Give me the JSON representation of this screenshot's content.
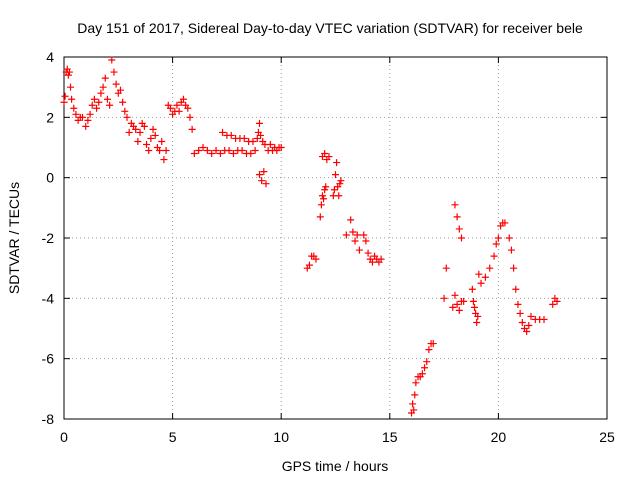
{
  "chart_data": {
    "type": "scatter",
    "title": "Day 151 of 2017, Sidereal Day-to-day VTEC variation (SDTVAR) for receiver bele",
    "xlabel": "GPS time / hours",
    "ylabel": "SDTVAR / TECUs",
    "xlim": [
      0,
      25
    ],
    "ylim": [
      -8,
      4
    ],
    "x_ticks": [
      0,
      5,
      10,
      15,
      20,
      25
    ],
    "y_ticks": [
      -8,
      -6,
      -4,
      -2,
      0,
      2,
      4
    ],
    "x_tick_labels": [
      "0",
      "5",
      "10",
      "15",
      "20",
      "25"
    ],
    "y_tick_labels": [
      "-8",
      "-6",
      "-4",
      "-2",
      "0",
      "2",
      "4"
    ],
    "grid": true,
    "marker": "+",
    "color": "#ff0000",
    "series": [
      {
        "name": "SDTVAR",
        "x": [
          0.0,
          0.05,
          0.1,
          0.15,
          0.2,
          0.25,
          0.3,
          0.35,
          0.45,
          0.55,
          0.65,
          0.75,
          0.85,
          1.0,
          1.1,
          1.2,
          1.3,
          1.4,
          1.5,
          1.6,
          1.7,
          1.8,
          1.9,
          2.0,
          2.1,
          2.2,
          2.3,
          2.4,
          2.5,
          2.6,
          2.7,
          2.8,
          2.9,
          3.0,
          3.1,
          3.2,
          3.3,
          3.4,
          3.5,
          3.6,
          3.7,
          3.8,
          3.9,
          4.0,
          4.1,
          4.2,
          4.3,
          4.4,
          4.5,
          4.6,
          4.7,
          4.8,
          4.9,
          5.0,
          5.1,
          5.2,
          5.3,
          5.4,
          5.5,
          5.6,
          5.7,
          5.8,
          5.9,
          6.0,
          6.2,
          6.4,
          6.6,
          6.8,
          7.0,
          7.2,
          7.4,
          7.6,
          7.8,
          8.0,
          8.2,
          8.4,
          8.6,
          8.8,
          9.0,
          9.1,
          9.2,
          9.3,
          9.4,
          9.5,
          9.6,
          9.7,
          9.8,
          9.9,
          10.0,
          7.3,
          7.5,
          7.7,
          7.9,
          8.1,
          8.3,
          8.5,
          8.7,
          8.9,
          9.0,
          8.95,
          9.05,
          9.15,
          9.25,
          11.2,
          11.3,
          11.4,
          11.5,
          11.6,
          11.9,
          12.0,
          12.1,
          12.2,
          11.8,
          11.85,
          11.9,
          11.95,
          12.0,
          12.05,
          12.4,
          12.45,
          12.5,
          12.55,
          12.6,
          12.65,
          12.7,
          12.75,
          13.0,
          13.2,
          13.3,
          13.4,
          13.5,
          13.6,
          13.8,
          13.9,
          14.0,
          14.1,
          14.2,
          14.3,
          14.4,
          14.5,
          14.6,
          16.0,
          16.05,
          16.1,
          16.15,
          16.2,
          16.3,
          16.4,
          16.5,
          16.6,
          16.7,
          16.8,
          16.9,
          17.0,
          17.5,
          17.6,
          17.9,
          18.0,
          18.1,
          18.2,
          18.3,
          18.4,
          18.0,
          18.1,
          18.2,
          18.3,
          18.8,
          18.85,
          18.9,
          18.95,
          19.0,
          19.05,
          19.1,
          19.2,
          19.4,
          19.6,
          19.8,
          19.9,
          20.0,
          20.1,
          20.2,
          20.3,
          20.5,
          20.6,
          20.7,
          20.8,
          20.9,
          21.0,
          21.1,
          21.2,
          21.3,
          21.4,
          21.5,
          21.7,
          21.9,
          22.1,
          22.5,
          22.6,
          22.7
        ],
        "y": [
          2.5,
          2.7,
          3.5,
          3.6,
          3.4,
          3.5,
          3.0,
          2.6,
          2.3,
          2.1,
          1.9,
          2.0,
          2.0,
          1.7,
          1.9,
          2.1,
          2.4,
          2.6,
          2.3,
          2.5,
          2.8,
          3.0,
          3.3,
          2.6,
          2.4,
          3.9,
          3.5,
          3.1,
          2.8,
          2.9,
          2.5,
          2.2,
          2.0,
          1.5,
          1.8,
          1.7,
          1.6,
          1.2,
          1.5,
          1.8,
          1.7,
          1.1,
          0.9,
          1.3,
          1.6,
          1.4,
          1.0,
          0.9,
          1.2,
          0.6,
          0.9,
          2.4,
          2.3,
          2.1,
          2.2,
          2.4,
          2.2,
          2.5,
          2.6,
          2.4,
          2.3,
          2.0,
          1.6,
          0.8,
          0.9,
          1.0,
          0.9,
          0.8,
          0.9,
          0.8,
          0.9,
          0.9,
          0.8,
          0.9,
          0.9,
          0.8,
          0.8,
          0.9,
          0.1,
          -0.1,
          0.2,
          -0.2,
          0.9,
          1.1,
          0.9,
          1.0,
          0.9,
          1.0,
          1.0,
          1.5,
          1.4,
          1.4,
          1.3,
          1.3,
          1.3,
          1.2,
          1.2,
          1.3,
          1.8,
          1.5,
          1.4,
          1.2,
          1.1,
          -3.0,
          -2.9,
          -2.6,
          -2.6,
          -2.7,
          0.7,
          0.8,
          0.6,
          0.7,
          -1.3,
          -0.9,
          -0.6,
          -0.7,
          -0.4,
          -0.3,
          -0.6,
          -0.4,
          0.1,
          0.5,
          -0.3,
          -0.6,
          -0.2,
          -0.1,
          -1.9,
          -1.4,
          -1.8,
          -2.1,
          -1.9,
          -2.4,
          -1.9,
          -2.1,
          -2.5,
          -2.7,
          -2.8,
          -2.6,
          -2.7,
          -2.8,
          -2.7,
          -7.8,
          -7.5,
          -7.7,
          -7.2,
          -6.8,
          -6.6,
          -6.6,
          -6.5,
          -6.3,
          -6.1,
          -5.7,
          -5.5,
          -5.5,
          -4.0,
          -3.0,
          -4.3,
          -3.9,
          -4.2,
          -4.4,
          -4.1,
          -4.1,
          -0.9,
          -1.3,
          -1.7,
          -2.0,
          -3.7,
          -4.1,
          -4.3,
          -4.5,
          -4.8,
          -4.6,
          -3.2,
          -3.5,
          -3.3,
          -3.0,
          -2.6,
          -2.2,
          -2.0,
          -1.6,
          -1.5,
          -1.5,
          -2.0,
          -2.4,
          -3.0,
          -3.7,
          -4.2,
          -4.5,
          -4.8,
          -5.0,
          -5.1,
          -4.9,
          -4.6,
          -4.7,
          -4.7,
          -4.7,
          -4.2,
          -4.0,
          -4.1
        ]
      }
    ]
  }
}
